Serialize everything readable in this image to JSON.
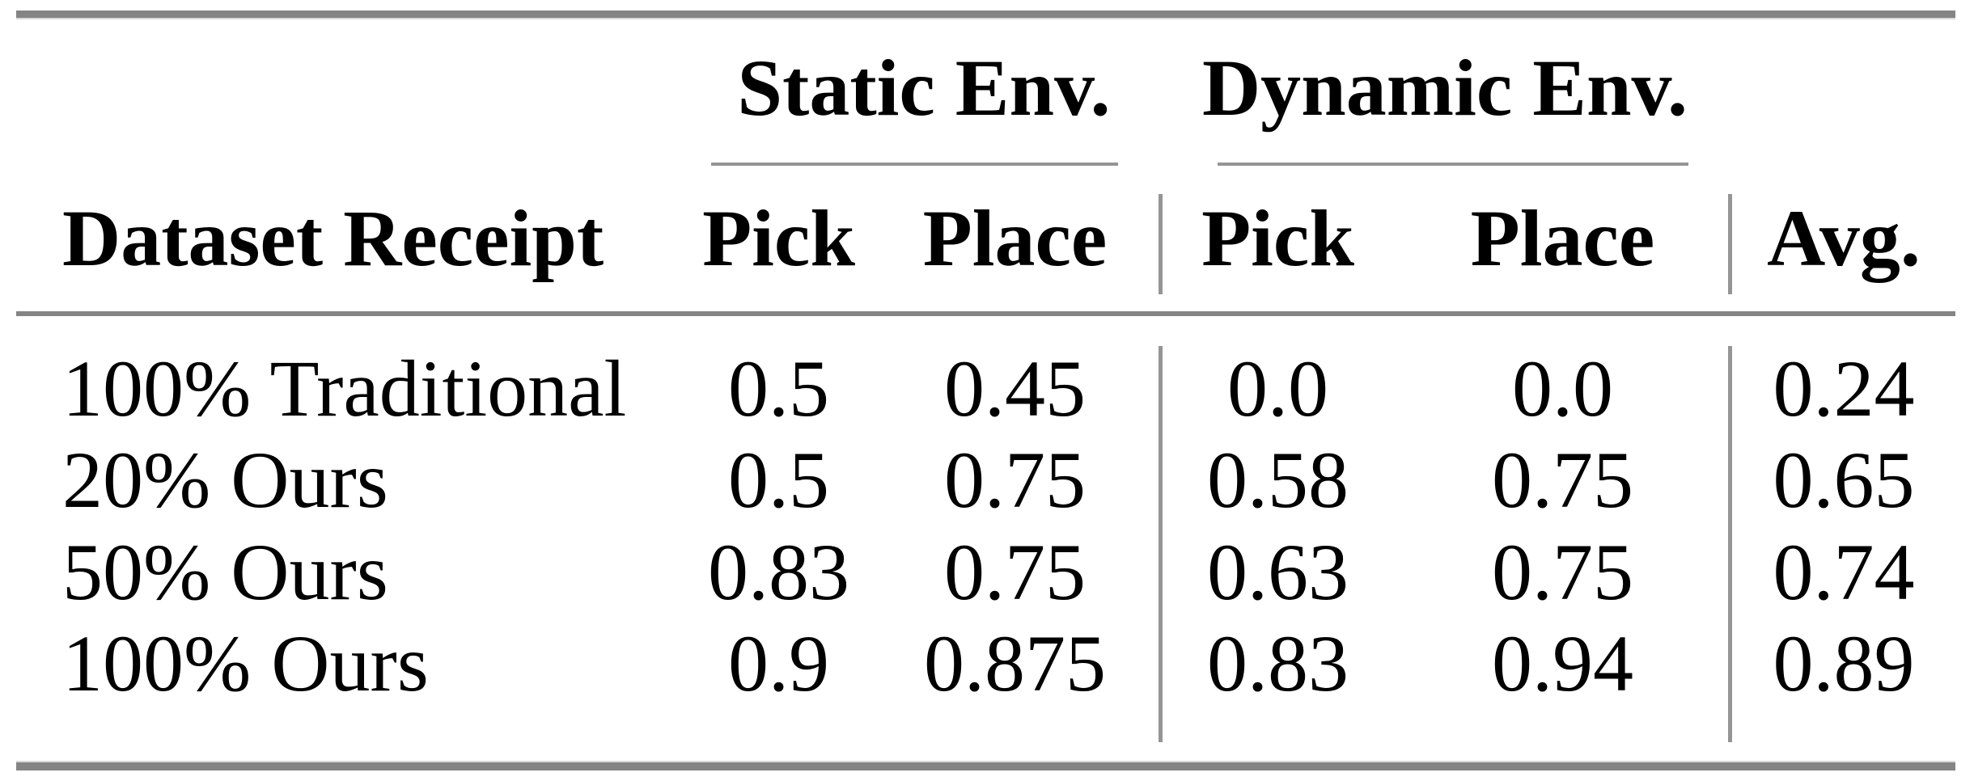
{
  "table": {
    "group_headers": {
      "static": "Static Env.",
      "dynamic": "Dynamic Env."
    },
    "column_headers": {
      "dataset": "Dataset Receipt",
      "static_pick": "Pick",
      "static_place": "Place",
      "dynamic_pick": "Pick",
      "dynamic_place": "Place",
      "avg": "Avg."
    },
    "rows": [
      {
        "cells": [
          "100% Traditional",
          "0.5",
          "0.45",
          "0.0",
          "0.0",
          "0.24"
        ]
      },
      {
        "cells": [
          "20% Ours",
          "0.5",
          "0.75",
          "0.58",
          "0.75",
          "0.65"
        ]
      },
      {
        "cells": [
          "50% Ours",
          "0.83",
          "0.75",
          "0.63",
          "0.75",
          "0.74"
        ]
      },
      {
        "cells": [
          "100% Ours",
          "0.9",
          "0.875",
          "0.83",
          "0.94",
          "0.89"
        ]
      }
    ],
    "colors": {
      "heavy_rule": "#848484",
      "light_rule": "#959595",
      "text": "#000000",
      "background": "#ffffff"
    }
  }
}
